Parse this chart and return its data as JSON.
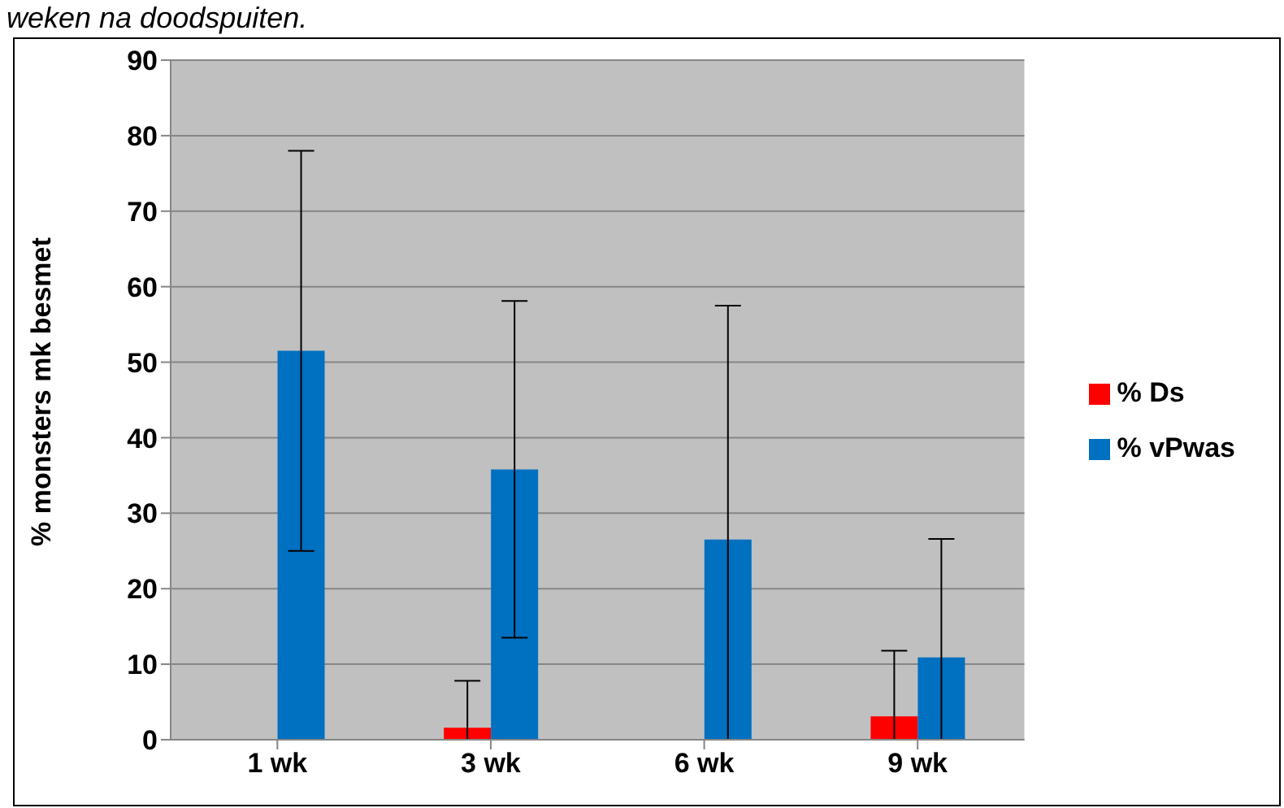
{
  "chart_data": {
    "type": "bar",
    "title": "weken na doodspuiten.",
    "ylabel": "% monsters mk besmet",
    "categories": [
      "1 wk",
      "3 wk",
      "6 wk",
      "9 wk"
    ],
    "series": [
      {
        "name": "% Ds",
        "color": "#ff0000",
        "values": [
          0,
          1.6,
          0,
          3.1
        ],
        "errors": [
          null,
          [
            0,
            7.8
          ],
          null,
          [
            0,
            11.8
          ]
        ]
      },
      {
        "name": "% vPwas",
        "color": "#0070c0",
        "values": [
          51.5,
          35.8,
          26.5,
          10.9
        ],
        "errors": [
          26.5,
          22.3,
          [
            0,
            57.5
          ],
          [
            0,
            26.6
          ]
        ]
      }
    ],
    "ylim": [
      0,
      90
    ],
    "yticks": [
      0,
      10,
      20,
      30,
      40,
      50,
      60,
      70,
      80,
      90
    ],
    "grid": "y",
    "legend": "right"
  }
}
